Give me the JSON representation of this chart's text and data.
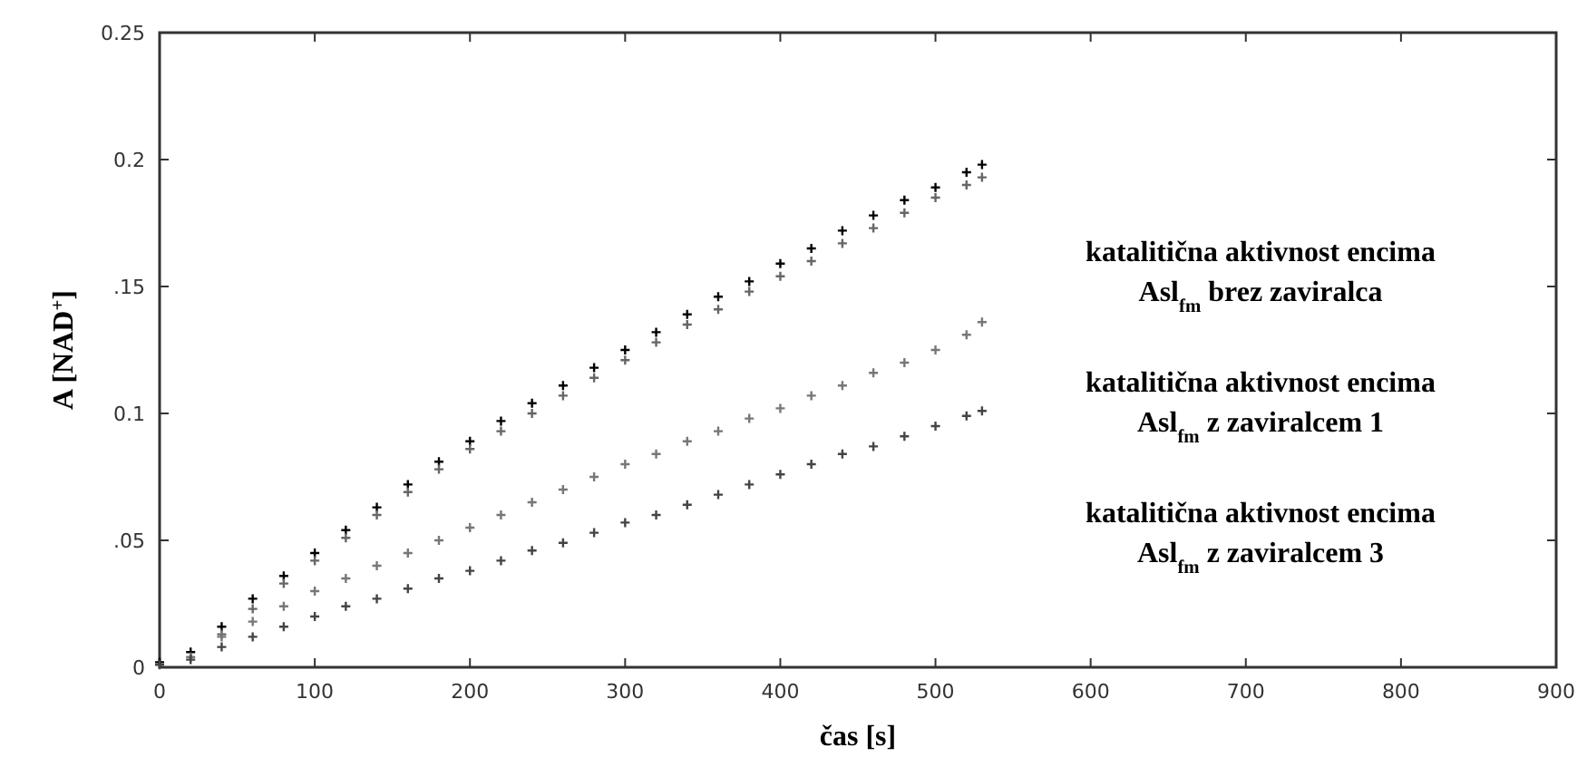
{
  "chart_data": {
    "type": "scatter",
    "xlabel": "čas [s]",
    "ylabel": "A [NAD$^{+}$]",
    "xlim": [
      0,
      900
    ],
    "ylim": [
      0,
      0.25
    ],
    "xticks": [
      0,
      100,
      200,
      300,
      400,
      500,
      600,
      700,
      800,
      900
    ],
    "yticks": [
      0,
      {
        "value": 0.05,
        "label": ".05"
      },
      0.1,
      {
        "value": 0.15,
        "label": ".15"
      },
      0.2,
      0.25
    ],
    "grid": false,
    "marker": "cross",
    "x": [
      0,
      20,
      40,
      60,
      80,
      100,
      120,
      140,
      160,
      180,
      200,
      220,
      240,
      260,
      280,
      300,
      320,
      340,
      360,
      380,
      400,
      420,
      440,
      460,
      480,
      500,
      520,
      530
    ],
    "series": [
      {
        "color": "#000000",
        "values": [
          0.002,
          0.006,
          0.016,
          0.027,
          0.036,
          0.045,
          0.054,
          0.063,
          0.072,
          0.081,
          0.089,
          0.097,
          0.104,
          0.111,
          0.118,
          0.125,
          0.132,
          0.139,
          0.146,
          0.152,
          0.159,
          0.165,
          0.172,
          0.178,
          0.184,
          0.189,
          0.195,
          0.198
        ]
      },
      {
        "color": "#666666",
        "values": [
          null,
          null,
          0.013,
          0.023,
          0.033,
          0.042,
          0.051,
          0.06,
          0.069,
          0.078,
          0.086,
          0.093,
          0.1,
          0.107,
          0.114,
          0.121,
          0.128,
          0.135,
          0.141,
          0.148,
          0.154,
          0.16,
          0.167,
          0.173,
          0.179,
          0.185,
          0.19,
          0.193
        ]
      },
      {
        "color": "#777777",
        "values": [
          null,
          0.004,
          0.012,
          0.018,
          0.024,
          0.03,
          0.035,
          0.04,
          0.045,
          0.05,
          0.055,
          0.06,
          0.065,
          0.07,
          0.075,
          0.08,
          0.084,
          0.089,
          0.093,
          0.098,
          0.102,
          0.107,
          0.111,
          0.116,
          0.12,
          0.125,
          0.131,
          0.136
        ]
      },
      {
        "color": "#444444",
        "values": [
          0.001,
          0.003,
          0.008,
          0.012,
          0.016,
          0.02,
          0.024,
          0.027,
          0.031,
          0.035,
          0.038,
          0.042,
          0.046,
          0.049,
          0.053,
          0.057,
          0.06,
          0.064,
          0.068,
          0.072,
          0.076,
          0.08,
          0.084,
          0.087,
          0.091,
          0.095,
          0.099,
          0.101
        ]
      }
    ],
    "annotations": [
      "katalitična aktivnost encima",
      "Asl$_{fm}$ brez zaviralca",
      "katalitična aktivnost encima",
      "Asl$_{fm}$ z zaviralcem 1",
      "katalitična aktivnost encima",
      "Asl$_{fm}$ z zaviralcem 3"
    ]
  }
}
